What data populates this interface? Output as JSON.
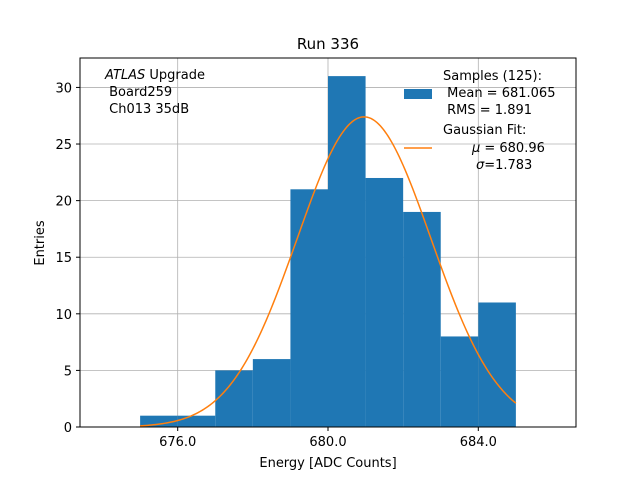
{
  "chart_data": {
    "type": "bar",
    "title": "Run 336",
    "xlabel": "Energy [ADC Counts]",
    "ylabel": "Entries",
    "xlim": [
      673.4,
      686.6
    ],
    "ylim": [
      0,
      32.6
    ],
    "xticks": [
      676.0,
      680.0,
      684.0
    ],
    "xtick_labels": [
      "676.0",
      "680.0",
      "684.0"
    ],
    "yticks": [
      0,
      5,
      10,
      15,
      20,
      25,
      30
    ],
    "ytick_labels": [
      "0",
      "5",
      "10",
      "15",
      "20",
      "25",
      "30"
    ],
    "grid": true,
    "bar_color": "#1f77b4",
    "fit_color": "#ff7f0e",
    "bins": [
      {
        "x0": 675,
        "x1": 676,
        "count": 1
      },
      {
        "x0": 676,
        "x1": 677,
        "count": 1
      },
      {
        "x0": 677,
        "x1": 678,
        "count": 5
      },
      {
        "x0": 678,
        "x1": 679,
        "count": 6
      },
      {
        "x0": 679,
        "x1": 680,
        "count": 21
      },
      {
        "x0": 680,
        "x1": 681,
        "count": 31
      },
      {
        "x0": 681,
        "x1": 682,
        "count": 22
      },
      {
        "x0": 682,
        "x1": 683,
        "count": 19
      },
      {
        "x0": 683,
        "x1": 684,
        "count": 8
      },
      {
        "x0": 684,
        "x1": 685,
        "count": 11
      }
    ],
    "fit": {
      "mu": 680.96,
      "sigma": 1.783,
      "amplitude": 27.4,
      "x_range": [
        675,
        685
      ]
    },
    "annotation": {
      "atlas": "ATLAS",
      "upgrade": " Upgrade",
      "line2": " Board259",
      "line3": " Ch013 35dB"
    },
    "legend": {
      "position": "top-right",
      "samples_title": "Samples (125):",
      "samples_mean": " Mean = 681.065",
      "samples_rms": " RMS = 1.891",
      "fit_title": "Gaussian Fit:",
      "fit_mu_symbol": "μ",
      "fit_mu_text": " = 680.96",
      "fit_sigma_symbol": "σ",
      "fit_sigma_text": "=1.783"
    }
  }
}
